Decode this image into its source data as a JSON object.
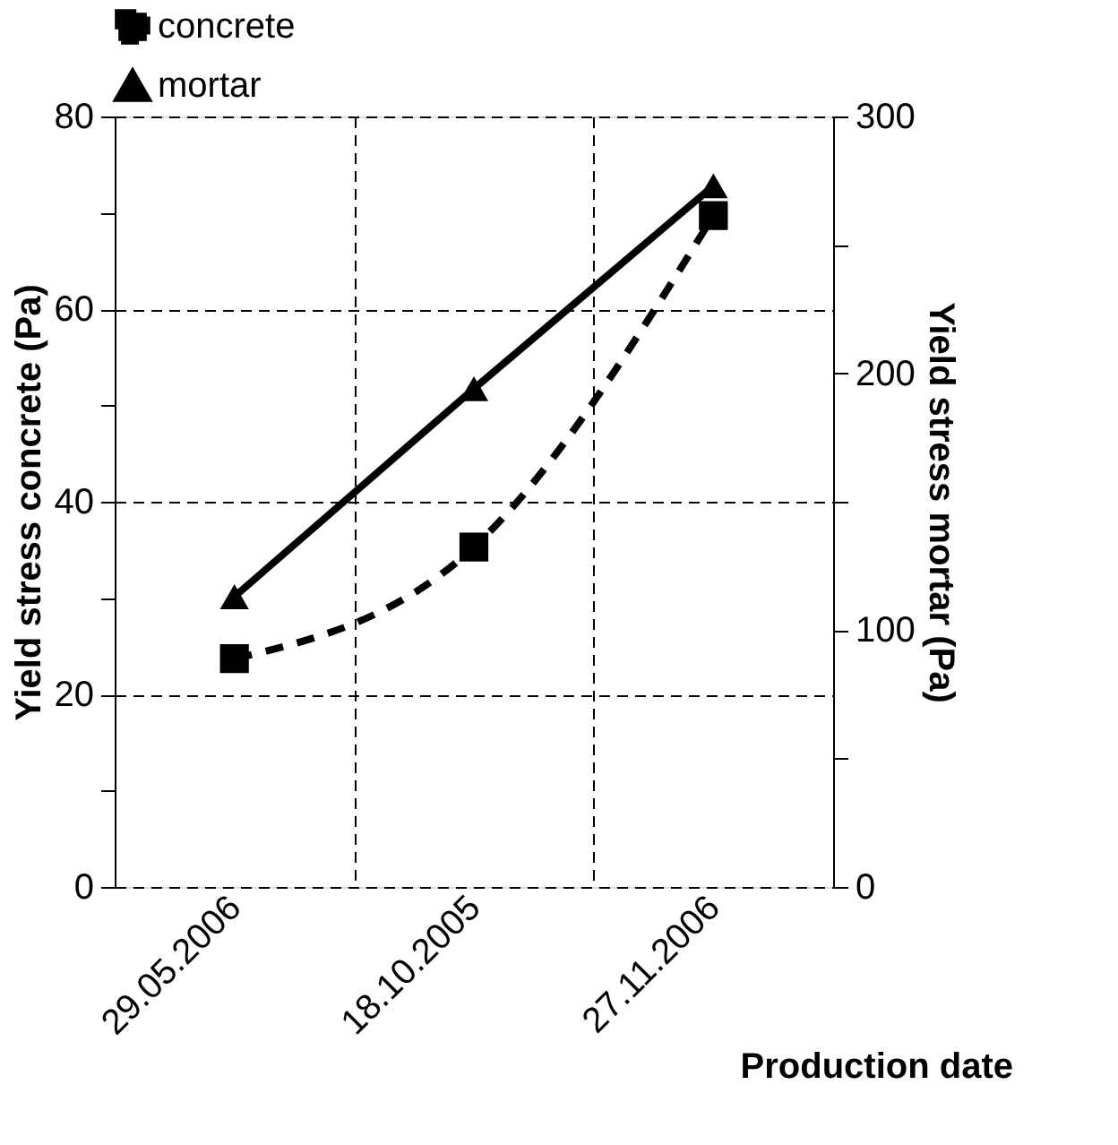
{
  "chart_data": {
    "type": "line",
    "categories": [
      "29.05.2006",
      "18.10.2005",
      "27.11.2006"
    ],
    "series": [
      {
        "name": "concrete",
        "color": "#000000",
        "values": [
          23.7,
          35.3,
          69.7
        ],
        "line_style": "dashed",
        "marker": "square",
        "axis": "y"
      },
      {
        "name": "mortar",
        "color": "#000000",
        "values": [
          113,
          194,
          273
        ],
        "line_style": "solid",
        "marker": "triangle",
        "axis": "y2"
      }
    ],
    "xlabel": "Production date",
    "ylabel": "Yield stress concrete (Pa)",
    "y2label": "Yield stress mortar (Pa)",
    "ylim": [
      0,
      80
    ],
    "yticks": [
      0,
      {
        "value": 10,
        "label": null
      },
      20,
      {
        "value": 30,
        "label": null
      },
      40,
      {
        "value": 50,
        "label": null
      },
      60,
      {
        "value": 70,
        "label": null
      },
      80
    ],
    "y2lim": [
      0,
      300
    ],
    "y2ticks": [
      0,
      {
        "value": 50,
        "label": null
      },
      100,
      {
        "value": 150,
        "label": null
      },
      200,
      {
        "value": 250,
        "label": null
      },
      300
    ],
    "grid": true,
    "legend": "top"
  }
}
